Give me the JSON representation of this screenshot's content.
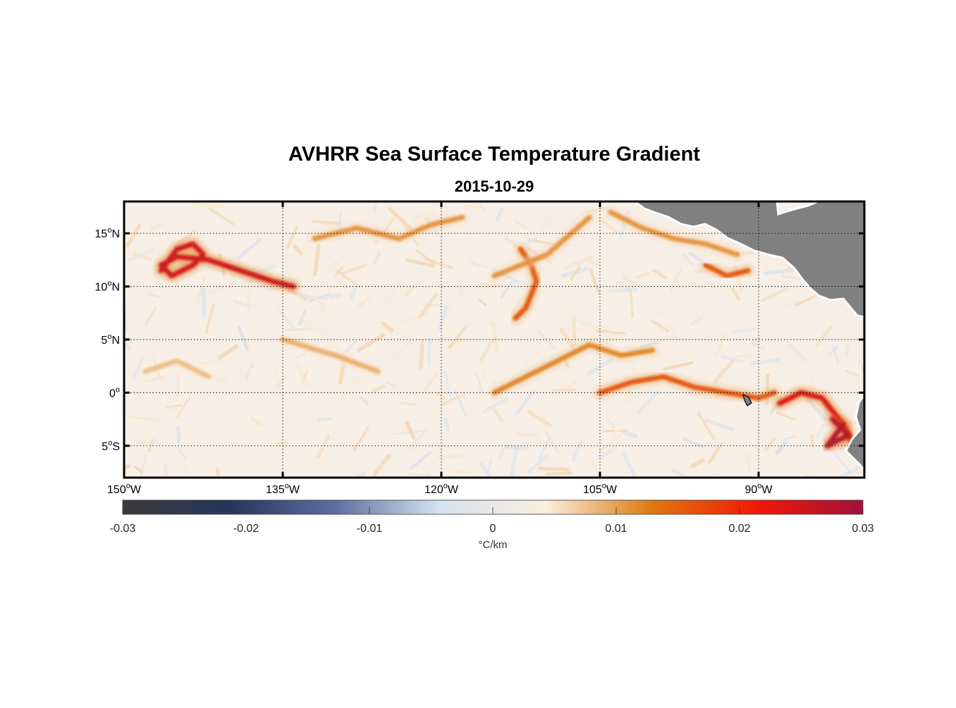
{
  "figure": {
    "title": "AVHRR Sea Surface Temperature Gradient",
    "subtitle": "2015-10-29"
  },
  "map": {
    "lon_range": [
      -150,
      -80
    ],
    "lat_range": [
      -8,
      18
    ],
    "lat_ticks": [
      {
        "value": 15,
        "num": "15",
        "hemi": "N"
      },
      {
        "value": 10,
        "num": "10",
        "hemi": "N"
      },
      {
        "value": 5,
        "num": "5",
        "hemi": "N"
      },
      {
        "value": 0,
        "num": "0",
        "hemi": ""
      },
      {
        "value": -5,
        "num": "5",
        "hemi": "S"
      }
    ],
    "lon_ticks": [
      {
        "value": -150,
        "num": "150",
        "hemi": "W"
      },
      {
        "value": -135,
        "num": "135",
        "hemi": "W"
      },
      {
        "value": -120,
        "num": "120",
        "hemi": "W"
      },
      {
        "value": -105,
        "num": "105",
        "hemi": "W"
      },
      {
        "value": -90,
        "num": "90",
        "hemi": "W"
      }
    ],
    "grid": true,
    "land_color": "#808080"
  },
  "colorbar": {
    "min": -0.03,
    "max": 0.03,
    "ticks": [
      "-0.03",
      "-0.02",
      "-0.01",
      "0",
      "0.01",
      "0.02",
      "0.03"
    ],
    "unit": "°C/km",
    "colors": [
      "#3b3b3b",
      "#25365c",
      "#5b6e9e",
      "#d5e3f0",
      "#fbeedd",
      "#dd7a10",
      "#f21807",
      "#a1123a"
    ]
  },
  "chart_data": {
    "type": "heatmap",
    "title": "AVHRR Sea Surface Temperature Gradient",
    "subtitle": "2015-10-29",
    "xlim": [
      -150,
      -80
    ],
    "ylim": [
      -8,
      18
    ],
    "color_range": [
      -0.03,
      0.03
    ],
    "fronts": [
      {
        "lon": [
          -146.5,
          -145,
          -143.5,
          -142.5,
          -143.5,
          -145.5,
          -146.5,
          -145,
          -142,
          -139,
          -136,
          -134
        ],
        "lat": [
          11.5,
          13.5,
          14,
          13,
          12,
          11,
          12,
          12.8,
          12.5,
          11.5,
          10.5,
          10
        ],
        "value": 0.025
      },
      {
        "lon": [
          -132,
          -128,
          -124,
          -121,
          -118
        ],
        "lat": [
          14.5,
          15.5,
          14.5,
          15.8,
          16.5
        ],
        "value": 0.011
      },
      {
        "lon": [
          -112.5,
          -111.5,
          -111,
          -112,
          -113
        ],
        "lat": [
          13.5,
          12,
          10.5,
          8,
          7
        ],
        "value": 0.016
      },
      {
        "lon": [
          -115,
          -112,
          -109,
          -106,
          -103,
          -100
        ],
        "lat": [
          0,
          1.5,
          3,
          4.5,
          3.5,
          4
        ],
        "value": 0.012
      },
      {
        "lon": [
          -105,
          -102,
          -99,
          -96,
          -93,
          -90,
          -88.5
        ],
        "lat": [
          0,
          1,
          1.5,
          0.5,
          0,
          -0.5,
          0
        ],
        "value": 0.016
      },
      {
        "lon": [
          -88,
          -86,
          -84,
          -82,
          -81
        ],
        "lat": [
          -1,
          0,
          -0.5,
          -3,
          -5
        ],
        "value": 0.024
      },
      {
        "lon": [
          -83,
          -81.5,
          -83.5,
          -82
        ],
        "lat": [
          -2.5,
          -4,
          -5,
          -3
        ],
        "value": 0.028
      },
      {
        "lon": [
          -95,
          -93,
          -91
        ],
        "lat": [
          12,
          11,
          11.5
        ],
        "value": 0.016
      },
      {
        "lon": [
          -115,
          -110,
          -106
        ],
        "lat": [
          11,
          13,
          16.5
        ],
        "value": 0.011
      },
      {
        "lon": [
          -104,
          -101,
          -98,
          -95,
          -92
        ],
        "lat": [
          17,
          15.5,
          14.5,
          14,
          13
        ],
        "value": 0.011
      },
      {
        "lon": [
          -135,
          -130,
          -126
        ],
        "lat": [
          5,
          3.5,
          2
        ],
        "value": 0.009
      },
      {
        "lon": [
          -148,
          -145,
          -142
        ],
        "lat": [
          2,
          3,
          1.5
        ],
        "value": 0.008
      }
    ]
  }
}
